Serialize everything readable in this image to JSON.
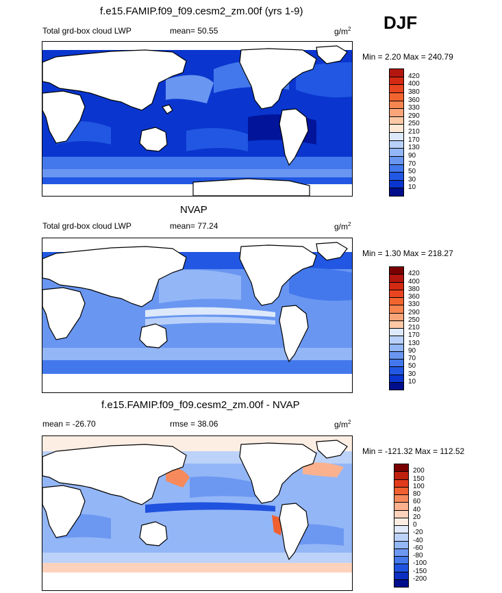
{
  "season": "DJF",
  "panels": [
    {
      "title": "f.e15.FAMIP.f09_f09.cesm2_zm.00f (yrs 1-9)",
      "left_label": "Total grd-box cloud LWP",
      "center_label": "mean=  50.55",
      "units_base": "g/m",
      "units_exp": "2",
      "minmax": "Min =   2.20 Max = 240.79",
      "colorbar": {
        "labels": [
          "420",
          "400",
          "380",
          "360",
          "330",
          "290",
          "250",
          "210",
          "170",
          "130",
          "90",
          "70",
          "50",
          "30",
          "10"
        ],
        "colors": [
          "#b2160f",
          "#d42a13",
          "#e84520",
          "#f2642e",
          "#f78550",
          "#faa47a",
          "#fcc8a6",
          "#fde8d6",
          "#dde9fb",
          "#b9d1fa",
          "#93b6f7",
          "#6996f1",
          "#4378ec",
          "#2157e2",
          "#0a36cf",
          "#000e8c"
        ]
      }
    },
    {
      "title": "NVAP",
      "left_label": "Total grd-box cloud LWP",
      "center_label": "mean=  77.24",
      "units_base": "g/m",
      "units_exp": "2",
      "minmax": "Min =   1.30 Max = 218.27",
      "colorbar": {
        "labels": [
          "420",
          "400",
          "380",
          "360",
          "330",
          "290",
          "250",
          "210",
          "170",
          "130",
          "90",
          "70",
          "50",
          "30",
          "10"
        ],
        "colors": [
          "#7a0000",
          "#b2160f",
          "#d42a13",
          "#e84520",
          "#f2642e",
          "#f78550",
          "#faa47a",
          "#fcc8a6",
          "#dde9fb",
          "#b9d1fa",
          "#93b6f7",
          "#6996f1",
          "#4378ec",
          "#2157e2",
          "#0a36cf",
          "#000e8c"
        ]
      }
    },
    {
      "title": "f.e15.FAMIP.f09_f09.cesm2_zm.00f - NVAP",
      "left_label": "mean = -26.70",
      "center_label": "rmse =  38.06",
      "units_base": "g/m",
      "units_exp": "2",
      "minmax": "Min = -121.32 Max = 112.52",
      "colorbar": {
        "labels": [
          "200",
          "150",
          "100",
          "80",
          "60",
          "40",
          "20",
          "0",
          "-20",
          "-40",
          "-60",
          "-80",
          "-100",
          "-150",
          "-200"
        ],
        "colors": [
          "#7a0000",
          "#c0200f",
          "#e23a1c",
          "#f06030",
          "#f78a5c",
          "#fbb18e",
          "#fdd2bd",
          "#fdeee4",
          "#e1ebfb",
          "#bcd2f9",
          "#94b7f6",
          "#6c98f1",
          "#4478eb",
          "#1f52de",
          "#0a2fc2",
          "#000e8c"
        ]
      }
    }
  ],
  "chart_data": [
    {
      "type": "heatmap",
      "title": "f.e15.FAMIP.f09_f09.cesm2_zm.00f (yrs 1-9)",
      "variable": "Total grd-box cloud LWP",
      "units": "g/m2",
      "mean": 50.55,
      "min": 2.2,
      "max": 240.79,
      "levels": [
        10,
        30,
        50,
        70,
        90,
        130,
        170,
        210,
        250,
        290,
        330,
        360,
        380,
        400,
        420
      ]
    },
    {
      "type": "heatmap",
      "title": "NVAP",
      "variable": "Total grd-box cloud LWP",
      "units": "g/m2",
      "mean": 77.24,
      "min": 1.3,
      "max": 218.27,
      "levels": [
        10,
        30,
        50,
        70,
        90,
        130,
        170,
        210,
        250,
        290,
        330,
        360,
        380,
        400,
        420
      ]
    },
    {
      "type": "heatmap",
      "title": "f.e15.FAMIP.f09_f09.cesm2_zm.00f - NVAP",
      "units": "g/m2",
      "mean": -26.7,
      "rmse": 38.06,
      "min": -121.32,
      "max": 112.52,
      "levels": [
        -200,
        -150,
        -100,
        -80,
        -60,
        -40,
        -20,
        0,
        20,
        40,
        60,
        80,
        100,
        150,
        200
      ]
    }
  ]
}
